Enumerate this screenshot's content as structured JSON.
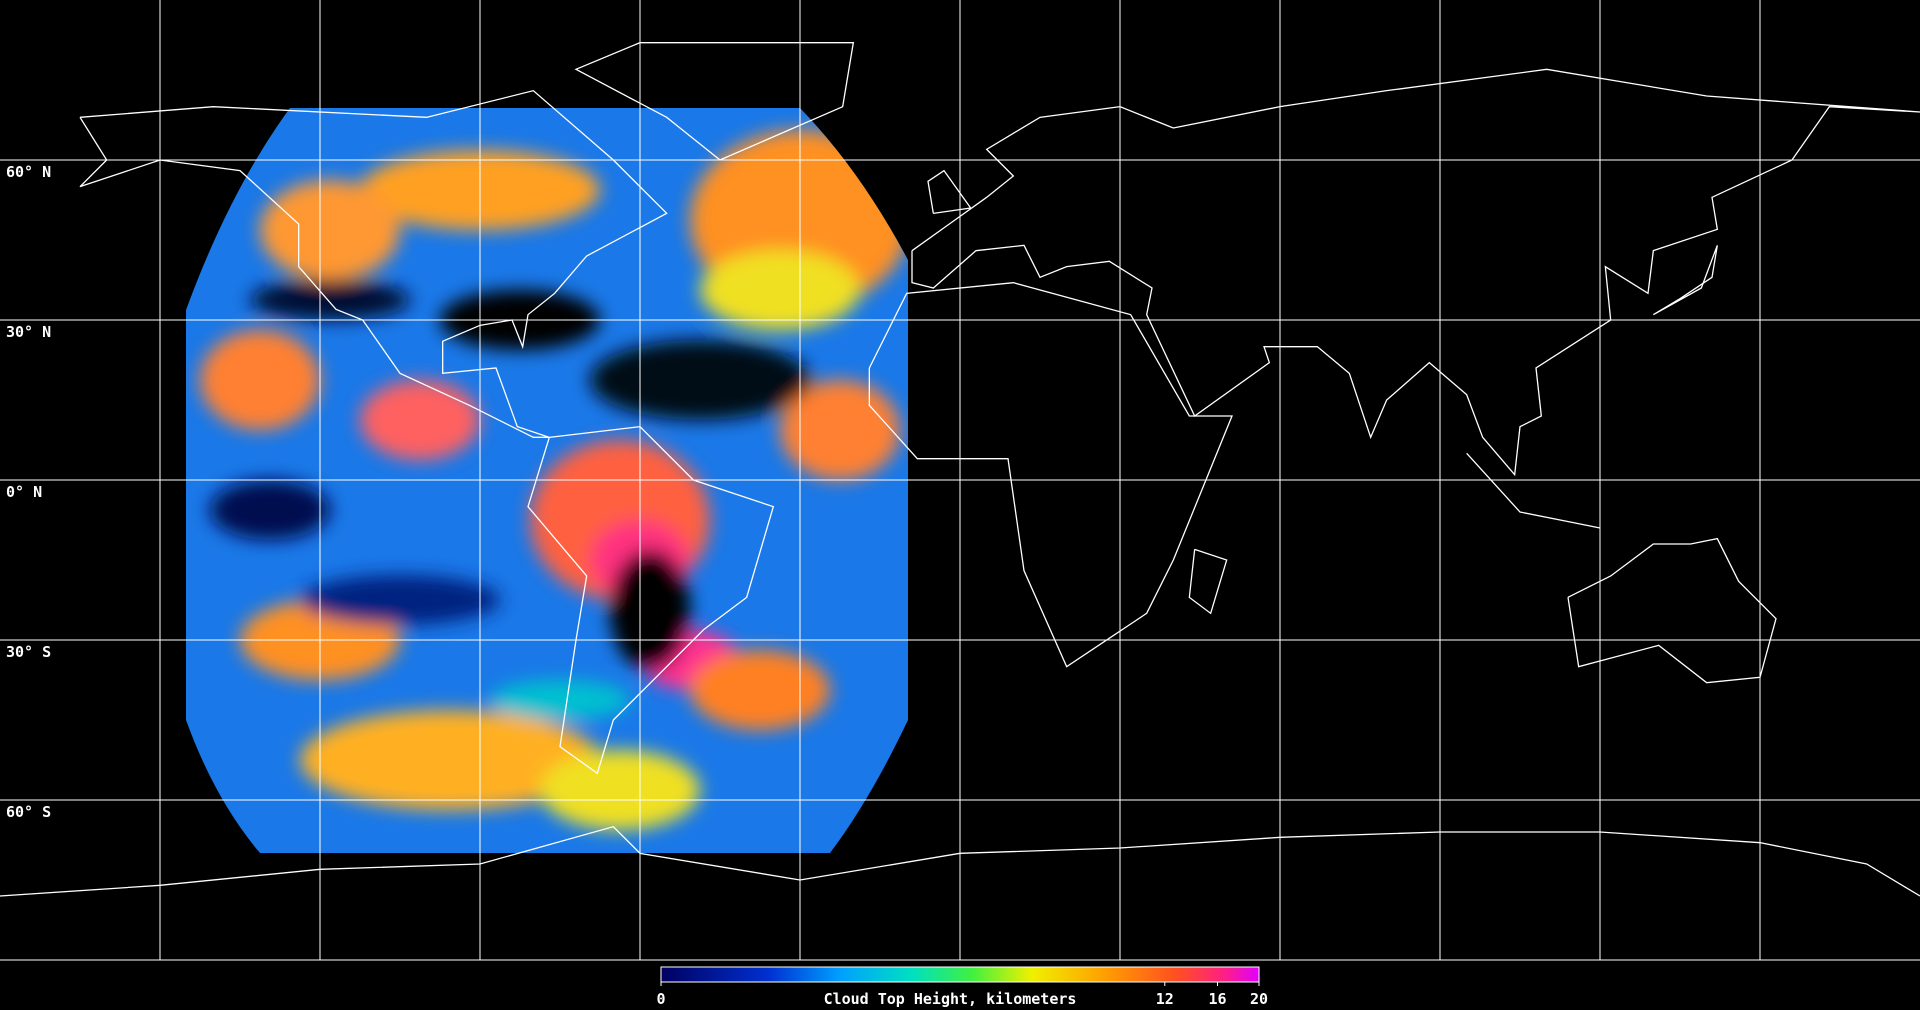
{
  "map": {
    "lat_labels": [
      "60° N",
      "30° N",
      "0° N",
      "30° S",
      "60° S"
    ],
    "colorbar": {
      "title": "Cloud Top Height, kilometers",
      "scale": "log1p",
      "range": [
        0,
        20
      ],
      "ticks": [
        0,
        12,
        16,
        20
      ]
    }
  }
}
